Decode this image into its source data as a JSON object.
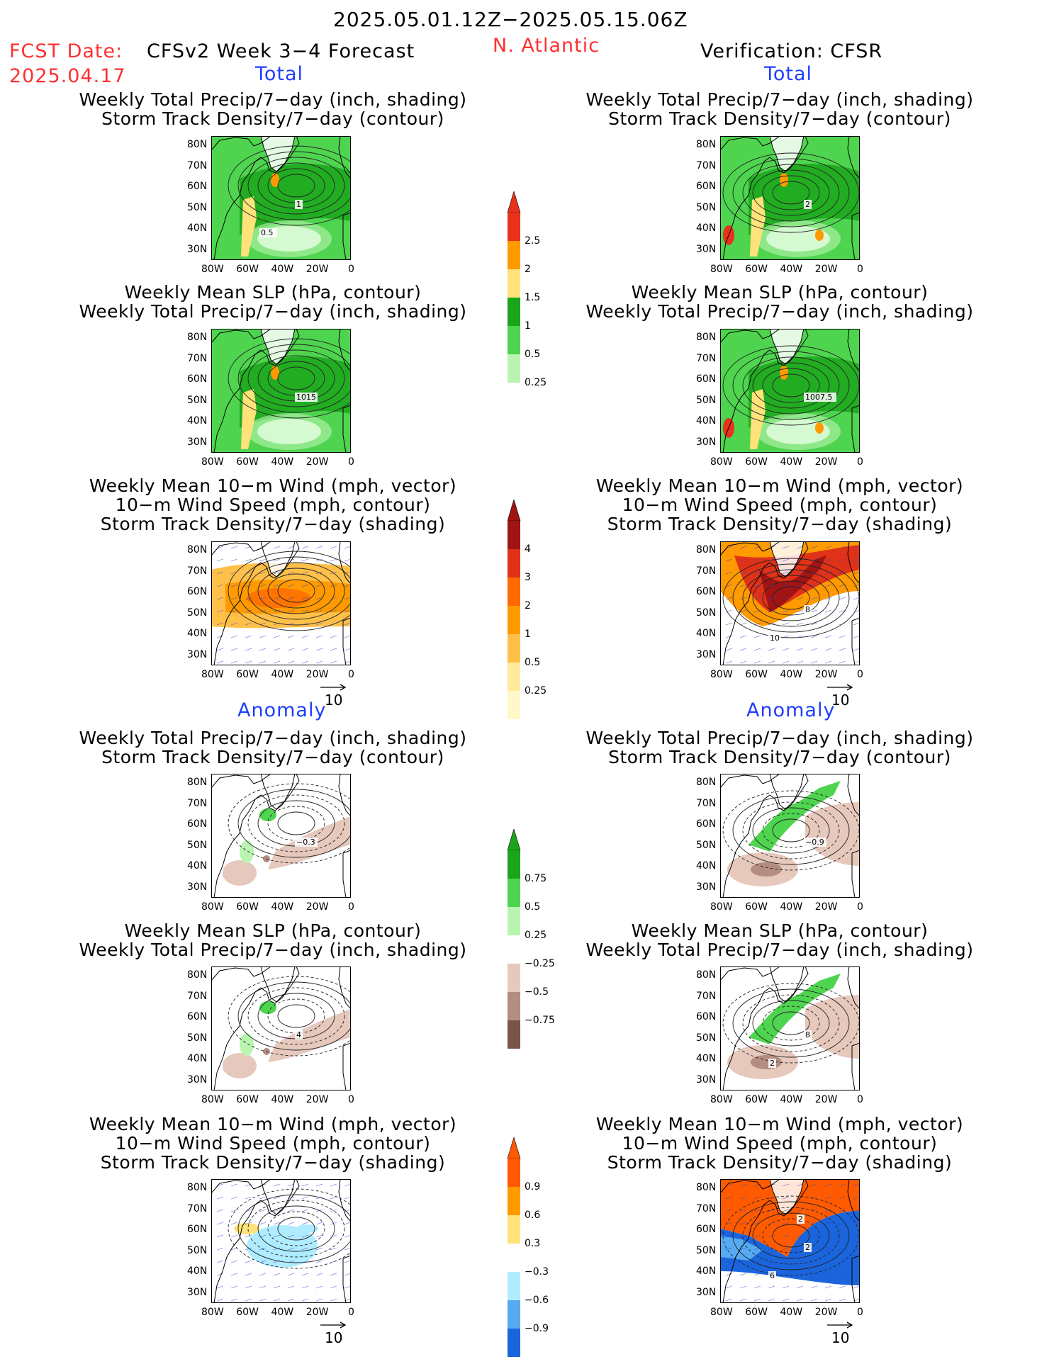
{
  "header": {
    "date_range": "2025.05.01.12Z−2025.05.15.06Z",
    "fcst_label": "FCST Date:",
    "fcst_date": "2025.04.17",
    "model": "CFSv2 Week 3−4 Forecast",
    "region": "N. Atlantic",
    "verification": "Verification: CFSR"
  },
  "sections": {
    "total": "Total",
    "anomaly": "Anomaly"
  },
  "titles": {
    "precip_std": [
      "Weekly Total Precip/7−day (inch, shading)",
      "Storm Track Density/7−day (contour)"
    ],
    "slp_precip": [
      "Weekly Mean SLP (hPa, contour)",
      "Weekly Total Precip/7−day (inch, shading)"
    ],
    "wind_std": [
      "Weekly Mean 10−m Wind (mph, vector)",
      "10−m Wind Speed (mph, contour)",
      "Storm Track Density/7−day (shading)"
    ]
  },
  "axes": {
    "lat_ticks": [
      "80N",
      "70N",
      "60N",
      "50N",
      "40N",
      "30N"
    ],
    "lon_ticks": [
      "80W",
      "60W",
      "40W",
      "20W",
      "0"
    ]
  },
  "vector_ref": "10",
  "contour_labels": {
    "fc_total_precip": [
      "1",
      "0.5"
    ],
    "obs_total_precip": [
      "2"
    ],
    "fc_total_slp": [
      "1015"
    ],
    "obs_total_slp": [
      "1007.5"
    ],
    "obs_total_wind": [
      "8",
      "10"
    ],
    "fc_anom_precip": [
      "−0.3"
    ],
    "obs_anom_precip": [
      "−0.9"
    ],
    "fc_anom_slp": [
      "4"
    ],
    "obs_anom_slp": [
      "8",
      "2"
    ],
    "obs_anom_wind": [
      "2",
      "6",
      "2"
    ]
  },
  "colorbars": {
    "precip_total": {
      "labels": [
        "2.5",
        "2",
        "1.5",
        "1",
        "0.5",
        "0.25"
      ],
      "colors": [
        "#e8321e",
        "#ff9a00",
        "#ffe27a",
        "#1aa51a",
        "#4fd44f",
        "#b9f5b0"
      ]
    },
    "storm_total": {
      "labels": [
        "4",
        "3",
        "2",
        "1",
        "0.5",
        "0.25"
      ],
      "colors": [
        "#a01414",
        "#e03218",
        "#ff6a00",
        "#ff9a00",
        "#ffc04a",
        "#ffea9a",
        "#fff8c8"
      ]
    },
    "precip_anom": {
      "labels": [
        "0.75",
        "0.5",
        "0.25",
        "−0.25",
        "−0.5",
        "−0.75"
      ],
      "colors": [
        "#1aa51a",
        "#4fd44f",
        "#b9f5b0",
        "#ffffff",
        "#e6c8bc",
        "#b48c80",
        "#7a5448"
      ]
    },
    "storm_anom": {
      "labels": [
        "0.9",
        "0.6",
        "0.3",
        "−0.3",
        "−0.6",
        "−0.9"
      ],
      "colors": [
        "#ff5a00",
        "#ff9a00",
        "#ffe27a",
        "#ffffff",
        "#b0ecff",
        "#55aaf0",
        "#1a64dc"
      ]
    }
  }
}
